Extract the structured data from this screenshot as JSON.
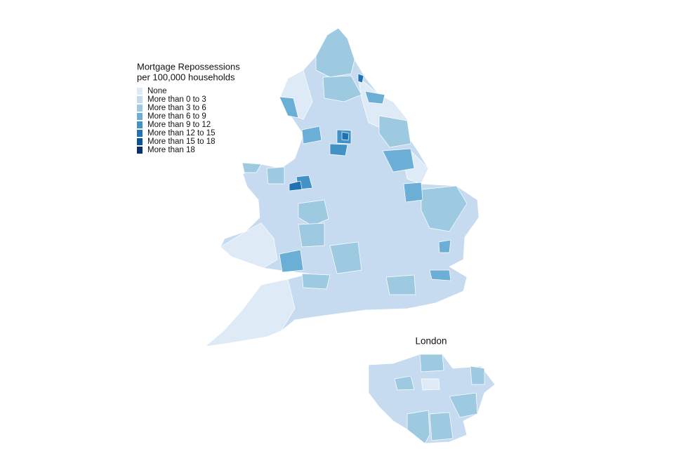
{
  "legend": {
    "title": [
      "Mortgage Repossessions",
      "per 100,000 households"
    ],
    "entries": [
      {
        "label": "None",
        "color": "#deebf7"
      },
      {
        "label": "More than 0 to 3",
        "color": "#c6dbef"
      },
      {
        "label": "More than 3 to 6",
        "color": "#9ecae1"
      },
      {
        "label": "More than 6 to 9",
        "color": "#6baed6"
      },
      {
        "label": "More than 9 to 12",
        "color": "#4292c6"
      },
      {
        "label": "More than 12 to 15",
        "color": "#2171b5"
      },
      {
        "label": "More than 15 to 18",
        "color": "#08519c"
      },
      {
        "label": "More than 18",
        "color": "#08306b"
      }
    ]
  },
  "inset": {
    "label": "London"
  }
}
